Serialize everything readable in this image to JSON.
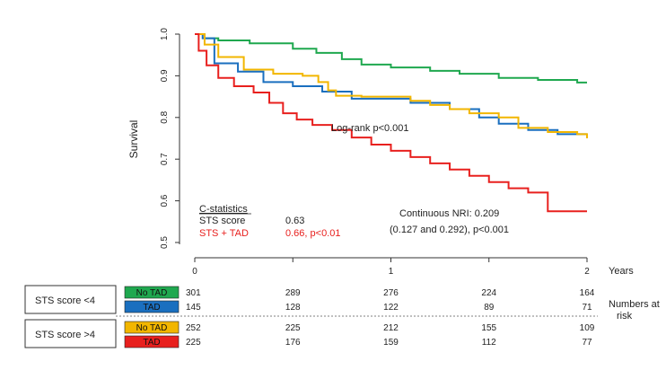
{
  "chart_data": {
    "type": "line",
    "ylabel": "Survival",
    "xlabel": "Years",
    "xlim": [
      0,
      2
    ],
    "ylim": [
      0.5,
      1.0
    ],
    "x_ticks": [
      "0",
      "1",
      "2"
    ],
    "y_ticks": [
      "0.5",
      "0.6",
      "0.7",
      "0.8",
      "0.9",
      "1.0"
    ],
    "series": [
      {
        "name": "No TAD",
        "group": "STS score <4",
        "color": "#1fa84f",
        "points": [
          [
            0,
            1.0
          ],
          [
            0.05,
            0.99
          ],
          [
            0.12,
            0.985
          ],
          [
            0.28,
            0.978
          ],
          [
            0.5,
            0.965
          ],
          [
            0.62,
            0.955
          ],
          [
            0.75,
            0.94
          ],
          [
            0.85,
            0.927
          ],
          [
            1.0,
            0.92
          ],
          [
            1.2,
            0.912
          ],
          [
            1.35,
            0.905
          ],
          [
            1.55,
            0.895
          ],
          [
            1.75,
            0.89
          ],
          [
            1.95,
            0.884
          ],
          [
            2.0,
            0.884
          ]
        ]
      },
      {
        "name": "TAD",
        "group": "STS score <4",
        "color": "#1a6fbf",
        "points": [
          [
            0,
            1.0
          ],
          [
            0.04,
            0.99
          ],
          [
            0.1,
            0.93
          ],
          [
            0.22,
            0.91
          ],
          [
            0.35,
            0.885
          ],
          [
            0.5,
            0.875
          ],
          [
            0.65,
            0.862
          ],
          [
            0.8,
            0.845
          ],
          [
            0.95,
            0.845
          ],
          [
            1.1,
            0.835
          ],
          [
            1.3,
            0.82
          ],
          [
            1.45,
            0.8
          ],
          [
            1.55,
            0.785
          ],
          [
            1.7,
            0.77
          ],
          [
            1.85,
            0.76
          ],
          [
            2.0,
            0.76
          ]
        ]
      },
      {
        "name": "No TAD",
        "group": "STS score >4",
        "color": "#f2b600",
        "points": [
          [
            0,
            1.0
          ],
          [
            0.05,
            0.975
          ],
          [
            0.12,
            0.945
          ],
          [
            0.25,
            0.915
          ],
          [
            0.4,
            0.905
          ],
          [
            0.55,
            0.9
          ],
          [
            0.63,
            0.885
          ],
          [
            0.68,
            0.865
          ],
          [
            0.72,
            0.852
          ],
          [
            0.85,
            0.85
          ],
          [
            1.0,
            0.85
          ],
          [
            1.1,
            0.84
          ],
          [
            1.2,
            0.83
          ],
          [
            1.3,
            0.82
          ],
          [
            1.4,
            0.81
          ],
          [
            1.55,
            0.8
          ],
          [
            1.65,
            0.775
          ],
          [
            1.8,
            0.765
          ],
          [
            1.95,
            0.76
          ],
          [
            2.0,
            0.75
          ]
        ]
      },
      {
        "name": "TAD",
        "group": "STS score >4",
        "color": "#e8201e",
        "points": [
          [
            0,
            1.0
          ],
          [
            0.02,
            0.96
          ],
          [
            0.06,
            0.925
          ],
          [
            0.12,
            0.895
          ],
          [
            0.2,
            0.875
          ],
          [
            0.3,
            0.86
          ],
          [
            0.38,
            0.835
          ],
          [
            0.45,
            0.81
          ],
          [
            0.52,
            0.795
          ],
          [
            0.6,
            0.782
          ],
          [
            0.7,
            0.77
          ],
          [
            0.8,
            0.752
          ],
          [
            0.9,
            0.735
          ],
          [
            1.0,
            0.72
          ],
          [
            1.1,
            0.705
          ],
          [
            1.2,
            0.69
          ],
          [
            1.3,
            0.675
          ],
          [
            1.4,
            0.66
          ],
          [
            1.5,
            0.645
          ],
          [
            1.6,
            0.63
          ],
          [
            1.7,
            0.62
          ],
          [
            1.8,
            0.575
          ],
          [
            2.0,
            0.575
          ]
        ]
      }
    ],
    "annotations": {
      "logrank": "Log-rank p<0.001",
      "cstat_title": "C-statistics",
      "cstat_row1_label": "STS score",
      "cstat_row1_value": "0.63",
      "cstat_row2_label": "STS + TAD",
      "cstat_row2_value": "0.66, p<0.01",
      "nri_line1": "Continuous NRI: 0.209",
      "nri_line2": "(0.127 and 0.292), p<0.001"
    },
    "risk_table": {
      "label_line1": "Numbers at",
      "label_line2": "risk",
      "time_points": [
        0,
        0.5,
        1.0,
        1.5,
        2.0
      ],
      "groups": [
        {
          "name": "STS score <4",
          "rows": [
            {
              "label": "No TAD",
              "color": "#1fa84f",
              "values": [
                "301",
                "289",
                "276",
                "224",
                "164"
              ]
            },
            {
              "label": "TAD",
              "color": "#1a6fbf",
              "values": [
                "145",
                "128",
                "122",
                "89",
                "71"
              ]
            }
          ]
        },
        {
          "name": "STS score >4",
          "rows": [
            {
              "label": "No TAD",
              "color": "#f2b600",
              "values": [
                "252",
                "225",
                "212",
                "155",
                "109"
              ]
            },
            {
              "label": "TAD",
              "color": "#e8201e",
              "values": [
                "225",
                "176",
                "159",
                "112",
                "77"
              ]
            }
          ]
        }
      ]
    }
  }
}
